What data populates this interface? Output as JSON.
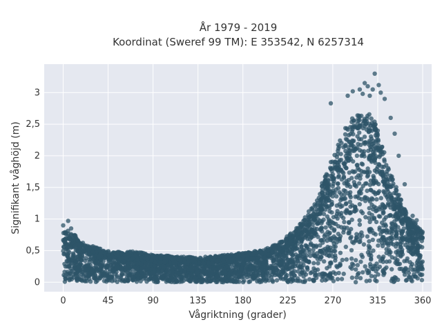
{
  "chart_data": {
    "type": "scatter",
    "title": "År 1979 - 2019",
    "subtitle": "Koordinat (Sweref 99 TM): E 353542, N 6257314",
    "xlabel": "Vågriktning (grader)",
    "ylabel": "Signifikant våghöjd (m)",
    "xlim": [
      -19,
      369
    ],
    "ylim": [
      -0.15,
      3.45
    ],
    "xticks": [
      {
        "value": 0,
        "label": "0"
      },
      {
        "value": 45,
        "label": "45"
      },
      {
        "value": 90,
        "label": "90"
      },
      {
        "value": 135,
        "label": "135"
      },
      {
        "value": 180,
        "label": "180"
      },
      {
        "value": 225,
        "label": "225"
      },
      {
        "value": 270,
        "label": "270"
      },
      {
        "value": 315,
        "label": "315"
      },
      {
        "value": 360,
        "label": "360"
      }
    ],
    "yticks": [
      {
        "value": 0,
        "label": "0"
      },
      {
        "value": 0.5,
        "label": "0,5"
      },
      {
        "value": 1,
        "label": "1"
      },
      {
        "value": 1.5,
        "label": "1,5"
      },
      {
        "value": 2,
        "label": "2"
      },
      {
        "value": 2.5,
        "label": "2,5"
      },
      {
        "value": 3,
        "label": "3"
      }
    ],
    "grid": true,
    "marker_color": "#2e5468",
    "plot_background": "#e5e8f0",
    "envelope": {
      "direction": [
        0,
        5,
        10,
        20,
        30,
        45,
        60,
        70,
        90,
        110,
        135,
        150,
        180,
        200,
        220,
        235,
        250,
        260,
        270,
        280,
        290,
        300,
        310,
        315,
        320,
        330,
        340,
        350,
        360
      ],
      "max_height": [
        0.78,
        0.82,
        0.75,
        0.62,
        0.55,
        0.5,
        0.45,
        0.48,
        0.42,
        0.4,
        0.38,
        0.4,
        0.45,
        0.5,
        0.65,
        0.85,
        1.2,
        1.55,
        1.95,
        2.3,
        2.55,
        2.7,
        2.55,
        2.35,
        2.1,
        1.6,
        1.2,
        0.95,
        0.8
      ]
    },
    "outliers": [
      {
        "x": 0,
        "y": 0.9
      },
      {
        "x": 5,
        "y": 0.97
      },
      {
        "x": 8,
        "y": 0.85
      },
      {
        "x": 268,
        "y": 2.83
      },
      {
        "x": 285,
        "y": 2.95
      },
      {
        "x": 290,
        "y": 3.02
      },
      {
        "x": 297,
        "y": 3.05
      },
      {
        "x": 300,
        "y": 2.98
      },
      {
        "x": 302,
        "y": 3.15
      },
      {
        "x": 305,
        "y": 3.1
      },
      {
        "x": 307,
        "y": 2.95
      },
      {
        "x": 310,
        "y": 3.05
      },
      {
        "x": 312,
        "y": 3.3
      },
      {
        "x": 316,
        "y": 3.12
      },
      {
        "x": 318,
        "y": 3.0
      },
      {
        "x": 322,
        "y": 2.9
      },
      {
        "x": 328,
        "y": 2.6
      },
      {
        "x": 332,
        "y": 2.35
      },
      {
        "x": 336,
        "y": 2.0
      },
      {
        "x": 342,
        "y": 1.55
      },
      {
        "x": 350,
        "y": 1.05
      },
      {
        "x": 354,
        "y": 0.98
      }
    ]
  }
}
